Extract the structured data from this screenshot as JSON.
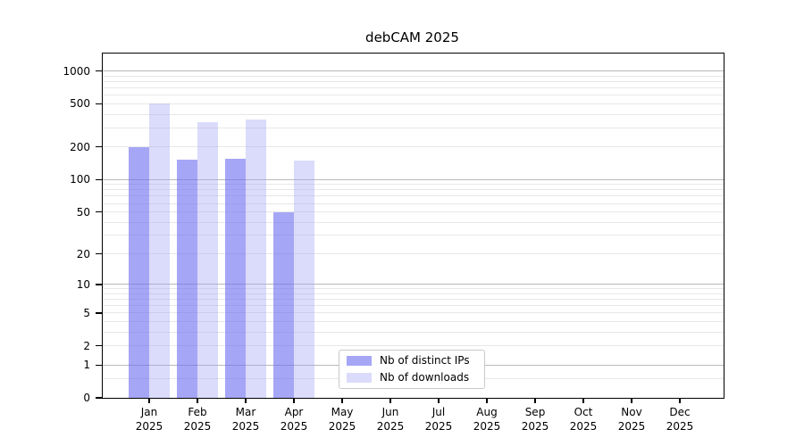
{
  "title": "debCAM 2025",
  "chart_data": {
    "type": "bar",
    "title": "debCAM 2025",
    "categories": [
      "Jan",
      "Feb",
      "Mar",
      "Apr",
      "May",
      "Jun",
      "Jul",
      "Aug",
      "Sep",
      "Oct",
      "Nov",
      "Dec"
    ],
    "category_year": "2025",
    "series": [
      {
        "name": "Nb of distinct IPs",
        "color": "rgba(112,112,242,0.62)",
        "values": [
          200,
          152,
          156,
          50,
          null,
          null,
          null,
          null,
          null,
          null,
          null,
          null
        ]
      },
      {
        "name": "Nb of downloads",
        "color": "rgba(160,160,245,0.38)",
        "values": [
          505,
          340,
          360,
          150,
          null,
          null,
          null,
          null,
          null,
          null,
          null,
          null
        ]
      }
    ],
    "xlabel": "",
    "ylabel": "",
    "y_axis": {
      "scale": "log10(value+1)",
      "ticks": [
        0,
        1,
        2,
        5,
        10,
        20,
        50,
        100,
        200,
        500,
        1000
      ],
      "range": [
        0,
        1420
      ],
      "major_gridlines": [
        1,
        10,
        100,
        1000
      ],
      "minor_gridlines": [
        0.5,
        2,
        3,
        4,
        5,
        6,
        7,
        8,
        9,
        20,
        30,
        40,
        50,
        60,
        70,
        80,
        90,
        200,
        300,
        400,
        500,
        600,
        700,
        800,
        900
      ]
    },
    "grid": true,
    "legend_position": "lower center"
  },
  "legend": {
    "items": [
      "Nb of distinct IPs",
      "Nb of downloads"
    ]
  }
}
